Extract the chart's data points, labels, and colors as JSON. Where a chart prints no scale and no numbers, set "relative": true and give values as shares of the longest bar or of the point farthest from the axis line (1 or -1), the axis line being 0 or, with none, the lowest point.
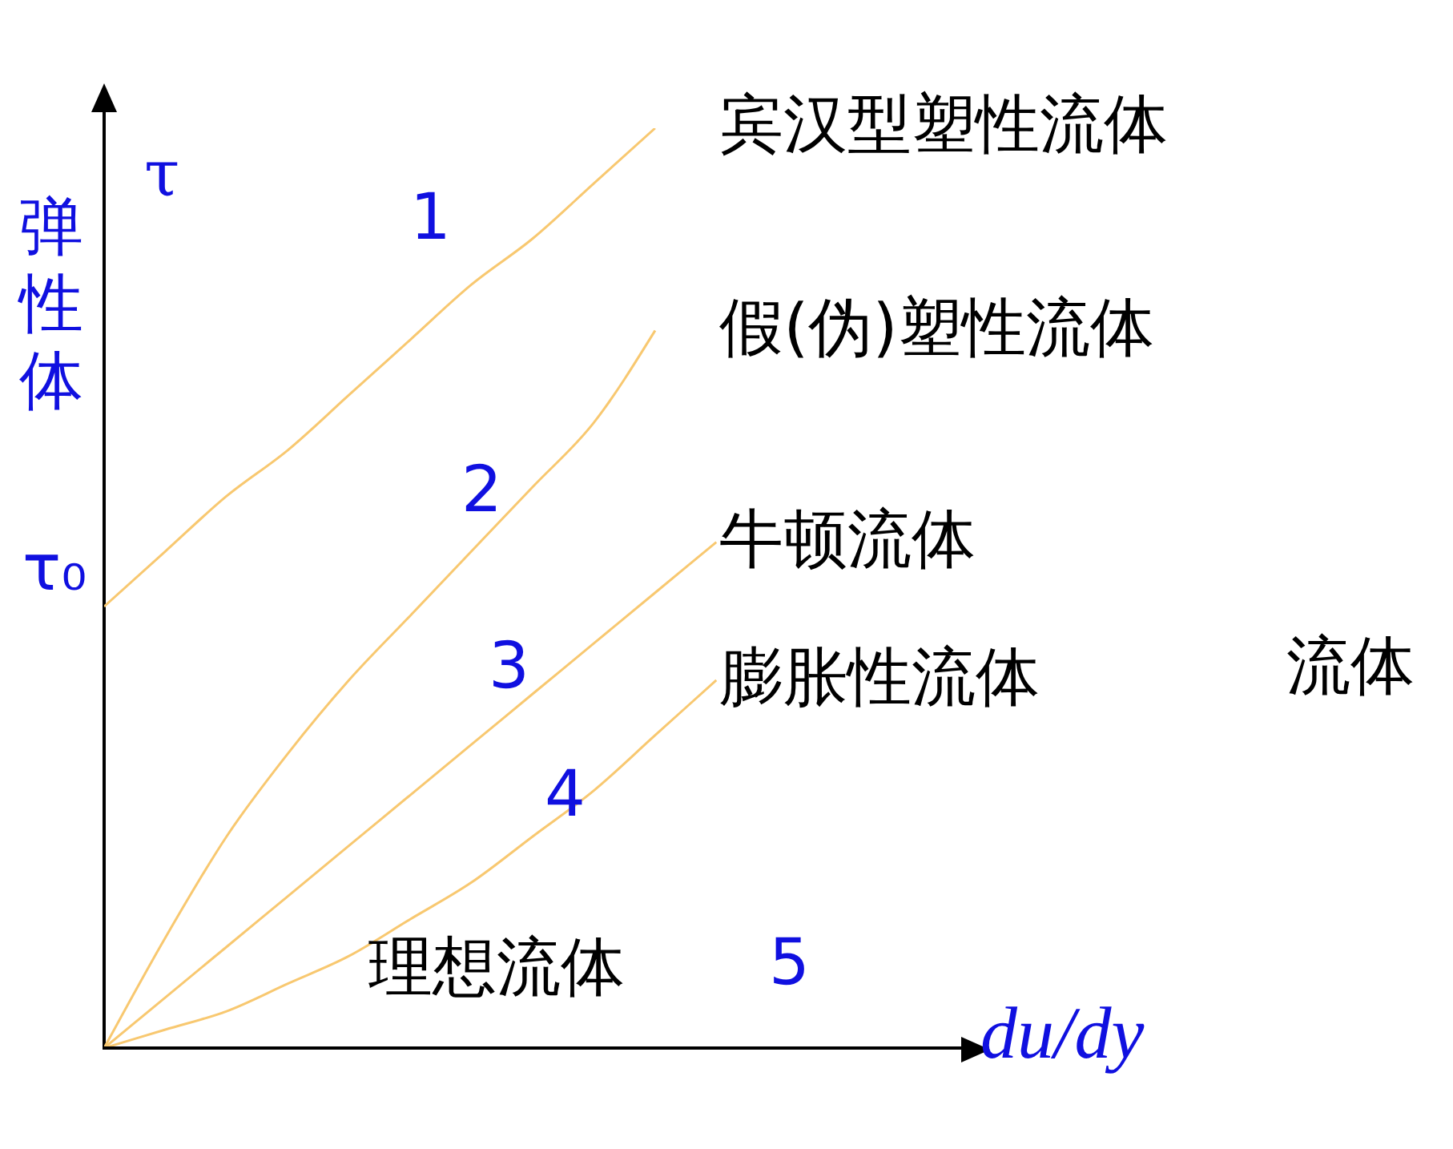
{
  "chart_data": {
    "type": "line",
    "relative": true,
    "xlabel": "du/dy",
    "ylabel": "τ",
    "categories": [
      null,
      null,
      null,
      null,
      null,
      null,
      null,
      null,
      null,
      null,
      null
    ],
    "series": [
      {
        "name": "宾汉型塑性流体",
        "color": "#f8c870",
        "values": [
          0.48,
          0.54,
          0.6,
          0.65,
          0.71,
          0.77,
          0.83,
          0.88,
          0.94,
          1.0,
          null
        ]
      },
      {
        "name": "假(伪)塑性流体",
        "color": "#f8c870",
        "values": [
          0,
          0.12,
          0.23,
          0.32,
          0.4,
          0.47,
          0.54,
          0.61,
          0.68,
          0.78,
          null
        ]
      },
      {
        "name": "牛顿流体",
        "color": "#f8c870",
        "values": [
          0,
          0.055,
          0.11,
          0.165,
          0.22,
          0.275,
          0.33,
          0.385,
          0.44,
          0.495,
          0.55
        ]
      },
      {
        "name": "膨胀性流体",
        "color": "#f8c870",
        "values": [
          0,
          0.02,
          0.04,
          0.07,
          0.1,
          0.14,
          0.18,
          0.23,
          0.28,
          0.34,
          0.4
        ]
      }
    ],
    "annotations": [
      "1",
      "2",
      "3",
      "4",
      "5",
      "理想流体",
      "弹性体",
      "流体",
      "τ₀"
    ],
    "marker": "none",
    "line_style": "solid"
  }
}
